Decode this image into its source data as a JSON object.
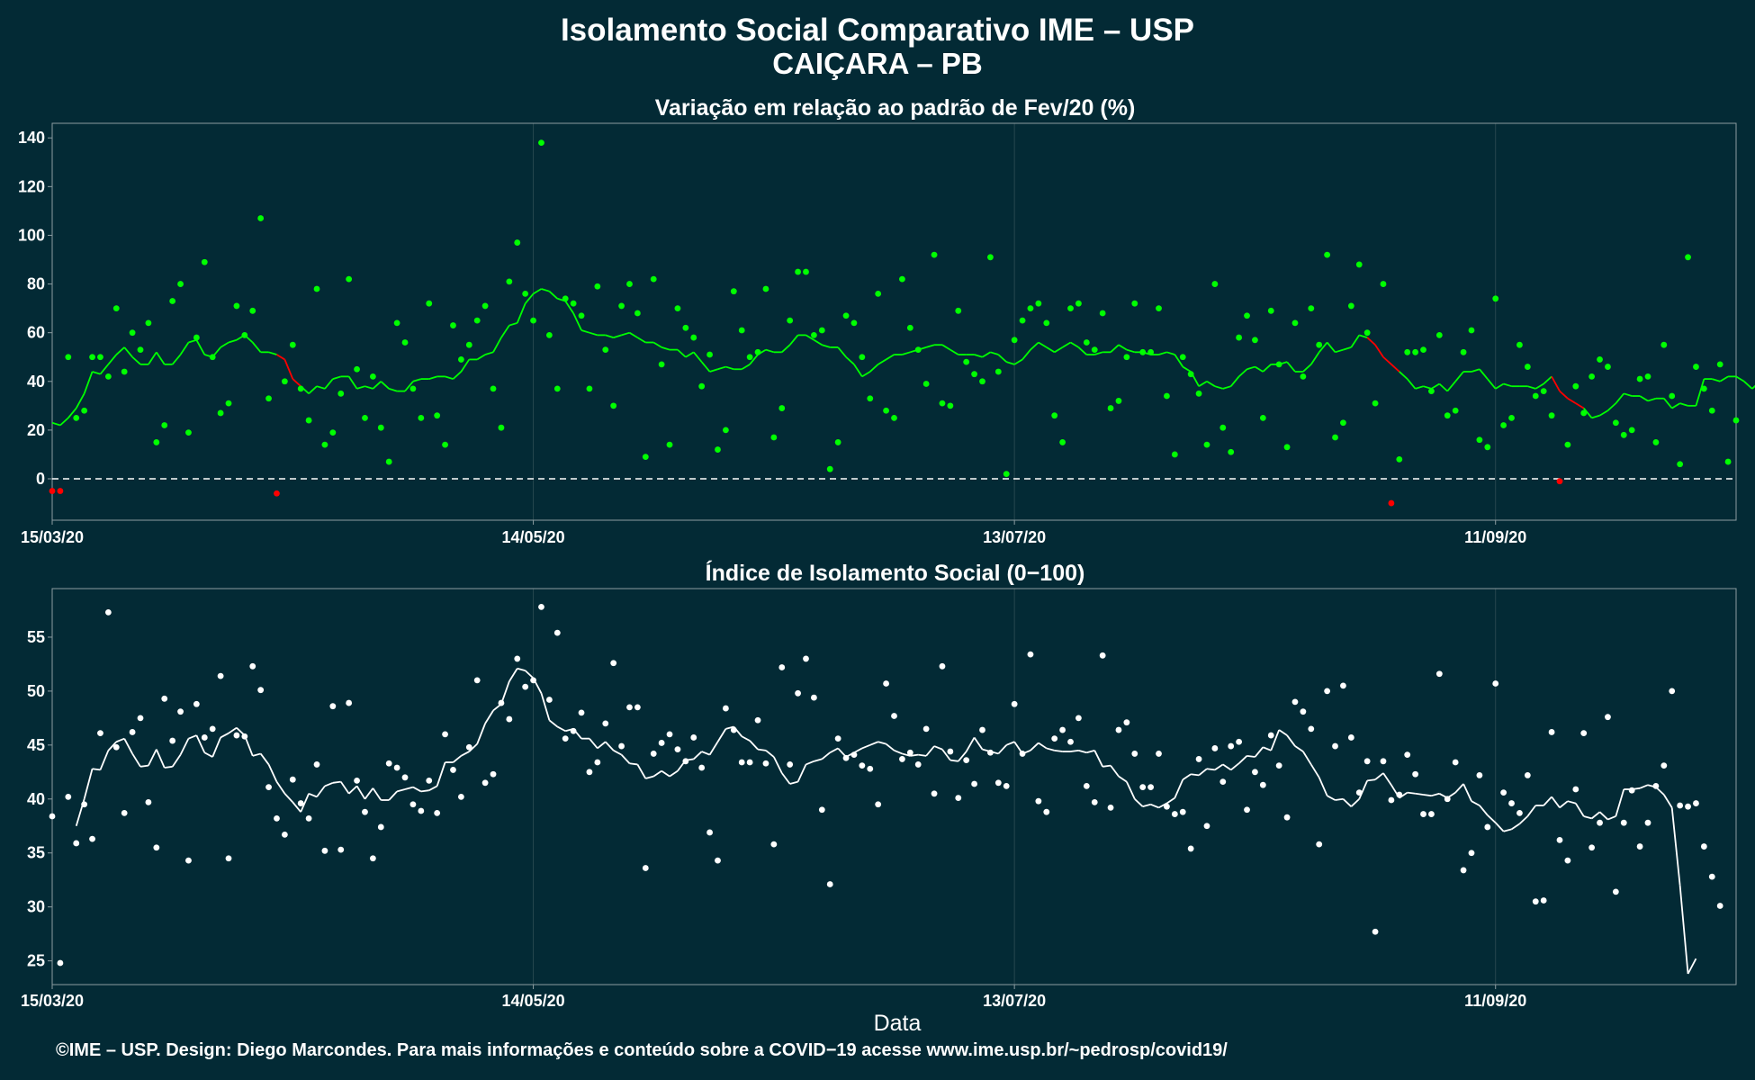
{
  "title": "Isolamento Social Comparativo IME – USP",
  "subtitle": "CAIÇARA – PB",
  "footer": "©IME – USP. Design: Diego Marcondes. Para mais informações e conteúdo sobre a COVID−19 acesse www.ime.usp.br/~pedrosp/covid19/",
  "xlabel": "Data",
  "colors": {
    "background": "#032a35",
    "positive": "#00ff00",
    "negative": "#ff0000",
    "index": "#ffffff",
    "grid": "#27474f"
  },
  "chart_data": [
    {
      "type": "scatter",
      "title": "Variação em relação ao padrão de Fev/20 (%)",
      "x_axis": "date, day 0 = 15/03/20",
      "x_ticks": [
        {
          "day": 0,
          "label": "15/03/20"
        },
        {
          "day": 60,
          "label": "14/05/20"
        },
        {
          "day": 120,
          "label": "13/07/20"
        },
        {
          "day": 180,
          "label": "11/09/20"
        }
      ],
      "xlim": [
        0,
        210
      ],
      "ylim": [
        -17,
        146
      ],
      "y_ticks": [
        0,
        20,
        40,
        60,
        80,
        100,
        120,
        140
      ],
      "reference_line": 0,
      "series": [
        {
          "values": [
            -5,
            -5,
            50,
            25,
            28,
            50,
            50,
            42,
            70,
            44,
            60,
            53,
            64,
            15,
            22,
            73,
            80,
            19,
            58,
            89,
            50,
            27,
            31,
            71,
            59,
            69,
            107,
            33,
            -6,
            40,
            55,
            37,
            24,
            78,
            14,
            19,
            35,
            82,
            45,
            25,
            42,
            21,
            7,
            64,
            56,
            37,
            25,
            72,
            26,
            14,
            63,
            49,
            55,
            65,
            71,
            37,
            21,
            81,
            97,
            76,
            65,
            138,
            59,
            37,
            74,
            72,
            67,
            37,
            79,
            53,
            30,
            71,
            80,
            68,
            9,
            82,
            47,
            14,
            70,
            62,
            58,
            38,
            51,
            12,
            20,
            77,
            61,
            50,
            52,
            78,
            17,
            29,
            65,
            85,
            85,
            59,
            61,
            4,
            15,
            67,
            64,
            50,
            33,
            76,
            28,
            25,
            82,
            62,
            53,
            39,
            92,
            31,
            30,
            69,
            48,
            43,
            40,
            91,
            44,
            2,
            57,
            65,
            70,
            72,
            64,
            26,
            15,
            70,
            72,
            56,
            53,
            68,
            29,
            32,
            50,
            72,
            52,
            52,
            70,
            34,
            10,
            50,
            43,
            35,
            14,
            80,
            21,
            11,
            58,
            67,
            57,
            25,
            69,
            47,
            13,
            64,
            42,
            70,
            55,
            92,
            17,
            23,
            71,
            88,
            60,
            31,
            80,
            -10,
            8,
            52,
            52,
            53,
            36,
            59,
            26,
            28,
            52,
            61,
            16,
            13,
            74,
            22,
            25,
            55,
            46,
            34,
            36,
            26,
            -1,
            14,
            38,
            27,
            42,
            49,
            46,
            23,
            18,
            20,
            41,
            42,
            15,
            55,
            34,
            6,
            91,
            46,
            37,
            28,
            47,
            7,
            24
          ]
        },
        {
          "moving_average": [
            23,
            22,
            25,
            29,
            35,
            44,
            43,
            47,
            51,
            54,
            50,
            47,
            47,
            52,
            47,
            47,
            51,
            56,
            57,
            51,
            50,
            54,
            56,
            57,
            59,
            56,
            52,
            52,
            51,
            49,
            41,
            38,
            35,
            38,
            37,
            41,
            42,
            42,
            37,
            38,
            37,
            40,
            37,
            36,
            36,
            40,
            41,
            41,
            42,
            42,
            41,
            44,
            49,
            49,
            51,
            52,
            58,
            63,
            64,
            72,
            76,
            78,
            77,
            74,
            73,
            68,
            61,
            60,
            59,
            59,
            58,
            59,
            60,
            58,
            56,
            56,
            54,
            53,
            53,
            50,
            52,
            48,
            44,
            45,
            46,
            45,
            45,
            47,
            51,
            53,
            52,
            52,
            55,
            59,
            59,
            57,
            55,
            54,
            54,
            50,
            47,
            42,
            44,
            47,
            49,
            51,
            51,
            52,
            53,
            54,
            55,
            55,
            53,
            51,
            51,
            51,
            50,
            52,
            51,
            48,
            47,
            49,
            53,
            56,
            54,
            52,
            54,
            56,
            54,
            51,
            51,
            52,
            52,
            55,
            53,
            52,
            52,
            51,
            51,
            52,
            51,
            46,
            44,
            38,
            40,
            38,
            37,
            38,
            42,
            45,
            46,
            44,
            47,
            47,
            48,
            44,
            44,
            47,
            52,
            56,
            52,
            53,
            54,
            59,
            58,
            55,
            50,
            47,
            44,
            41,
            37,
            38,
            37,
            39,
            36,
            40,
            44,
            44,
            45,
            41,
            37,
            39,
            38,
            38,
            38,
            37,
            39,
            42,
            36,
            33,
            31,
            29,
            25,
            26,
            28,
            31,
            35,
            34,
            34,
            32,
            33,
            33,
            29,
            31,
            30,
            30,
            41,
            41,
            40,
            42,
            42,
            40,
            37,
            40
          ]
        }
      ]
    },
    {
      "type": "scatter",
      "title": "Índice de Isolamento Social (0−100)",
      "x_axis": "date, day 0 = 15/03/20",
      "x_ticks": [
        {
          "day": 0,
          "label": "15/03/20"
        },
        {
          "day": 60,
          "label": "14/05/20"
        },
        {
          "day": 120,
          "label": "13/07/20"
        },
        {
          "day": 180,
          "label": "11/09/20"
        }
      ],
      "xlim": [
        0,
        210
      ],
      "ylim": [
        22.8,
        59.5
      ],
      "y_ticks": [
        25,
        30,
        35,
        40,
        45,
        50,
        55
      ],
      "series": [
        {
          "values": [
            38.4,
            24.8,
            40.2,
            35.9,
            39.5,
            36.3,
            46.1,
            57.3,
            44.8,
            38.7,
            46.2,
            47.5,
            39.7,
            35.5,
            49.3,
            45.4,
            48.1,
            34.3,
            48.8,
            45.7,
            46.5,
            51.4,
            34.5,
            45.9,
            45.8,
            52.3,
            50.1,
            41.1,
            38.2,
            36.7,
            41.8,
            39.6,
            38.2,
            43.2,
            35.2,
            48.6,
            35.3,
            48.9,
            41.7,
            38.8,
            34.5,
            37.4,
            43.3,
            42.9,
            42,
            39.5,
            38.9,
            41.7,
            38.7,
            46,
            42.7,
            40.2,
            44.8,
            51,
            41.5,
            42.3,
            48.9,
            47.4,
            53,
            50.4,
            51,
            57.8,
            49.2,
            55.4,
            45.6,
            46.3,
            48,
            42.5,
            43.4,
            47,
            52.6,
            44.9,
            48.5,
            48.5,
            33.6,
            44.2,
            45.2,
            46,
            44.6,
            43.5,
            45.7,
            42.9,
            36.9,
            34.3,
            48.4,
            46.4,
            43.4,
            43.4,
            47.3,
            43.3,
            35.8,
            52.2,
            43.2,
            49.8,
            53,
            49.4,
            39,
            32.1,
            45.6,
            43.8,
            44.1,
            43.1,
            42.8,
            39.5,
            50.7,
            47.7,
            43.7,
            44.3,
            43.2,
            46.5,
            40.5,
            52.3,
            44.4,
            40.1,
            43.6,
            41.4,
            46.4,
            44.3,
            41.5,
            41.2,
            48.8,
            44.2,
            53.4,
            39.8,
            38.8,
            45.6,
            46.4,
            45.3,
            47.5,
            41.2,
            39.7,
            53.3,
            39.2,
            46.4,
            47.1,
            44.2,
            41.1,
            41.1,
            44.2,
            39.3,
            38.6,
            38.8,
            35.4,
            43.7,
            37.5,
            44.7,
            41.6,
            44.9,
            45.3,
            39,
            42.5,
            41.3,
            45.9,
            43.1,
            38.3,
            49,
            48.1,
            46.5,
            35.8,
            50,
            44.9,
            50.5,
            45.7,
            40.6,
            43.5,
            27.7,
            43.5,
            39.9,
            40.4,
            44.1,
            42.3,
            38.6,
            38.6,
            51.6,
            40,
            43.4,
            33.4,
            35,
            42.2,
            37.4,
            50.7,
            40.6,
            39.6,
            38.7,
            42.2,
            30.5,
            30.6,
            46.2,
            36.2,
            34.3,
            40.9,
            46.1,
            35.5,
            37.8,
            47.6,
            31.4,
            37.8,
            40.8,
            35.6,
            37.8,
            41.2,
            43.1,
            50,
            39.4,
            39.3,
            39.6,
            35.6,
            32.8,
            30.1
          ]
        },
        {
          "moving_average": [
            null,
            null,
            null,
            37.5,
            40,
            42.8,
            42.7,
            44.5,
            45.3,
            45.6,
            44.2,
            43,
            43.1,
            44.6,
            42.9,
            43,
            44.1,
            45.6,
            45.9,
            44.3,
            43.9,
            45.7,
            46.1,
            46.6,
            45.9,
            44,
            44.2,
            43.2,
            41.6,
            40.5,
            39.7,
            38.8,
            40.5,
            40.2,
            41.2,
            41.5,
            41.6,
            40.5,
            41.2,
            40,
            41,
            39.9,
            39.9,
            40.7,
            40.9,
            41.1,
            40.7,
            40.8,
            41.2,
            43.4,
            43.4,
            44,
            44.4,
            45.1,
            47,
            48.2,
            48.8,
            50.9,
            52.1,
            51.9,
            51.2,
            49.8,
            47.3,
            46.7,
            46.3,
            46.5,
            45.6,
            45.6,
            44.7,
            45.3,
            44.5,
            44.1,
            43.3,
            43.2,
            41.9,
            42.1,
            42.6,
            42.1,
            42.6,
            43.6,
            43.7,
            44.4,
            44.1,
            45.3,
            46.5,
            46.7,
            45.8,
            45.4,
            44.6,
            44.5,
            43.9,
            42.4,
            41.4,
            41.6,
            43.2,
            43.5,
            43.7,
            44.3,
            44.7,
            43.9,
            44.3,
            44.7,
            45,
            45.3,
            45.1,
            44.5,
            44.2,
            44,
            44.1,
            44,
            44.9,
            44.6,
            43.6,
            43.5,
            44.4,
            45.7,
            44.6,
            44.4,
            44.2,
            45,
            45.3,
            44.2,
            44.5,
            45.2,
            44.7,
            44.5,
            44.4,
            44.4,
            44.5,
            44.3,
            44.5,
            43,
            43.1,
            42.1,
            41.6,
            40,
            39.3,
            39.5,
            39.2,
            39.6,
            40.1,
            41.8,
            42.3,
            42.2,
            42.8,
            42.7,
            43.2,
            42.7,
            43.3,
            44,
            43.9,
            44.8,
            44.5,
            46.4,
            45.9,
            44.9,
            44.4,
            43.2,
            42,
            40.3,
            39.9,
            40,
            39.3,
            40,
            41.7,
            41.8,
            42.4,
            41.3,
            40.1,
            40.6,
            40.5,
            40.4,
            40.3,
            40.5,
            40.1,
            40.6,
            41.4,
            39.8,
            39.4,
            38.5,
            37.8,
            37,
            37.2,
            37.7,
            38.4,
            39.4,
            39.4,
            40.2,
            39.2,
            39.8,
            39.6,
            38.4,
            38.2,
            38.8,
            38.1,
            38.4,
            40.9,
            40.9,
            41,
            41.3,
            41.1,
            40.4,
            39.2,
            32,
            23.8,
            25.2
          ]
        }
      ]
    }
  ]
}
